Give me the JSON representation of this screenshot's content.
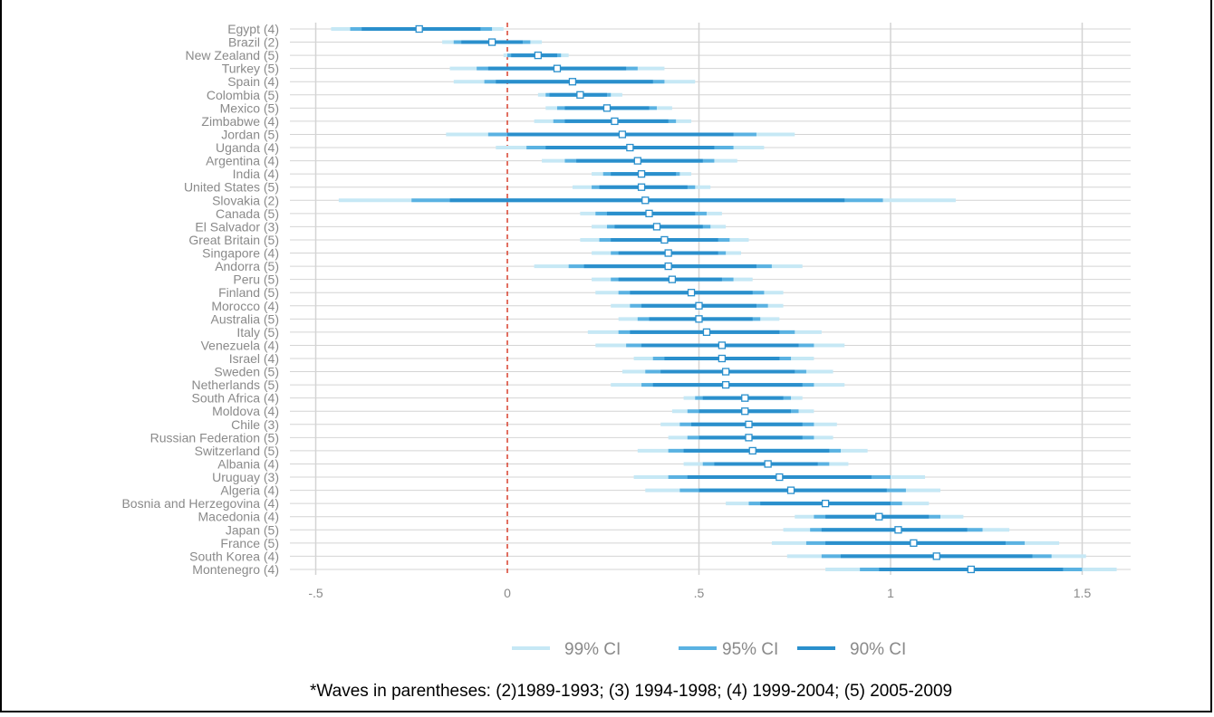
{
  "chart_data": {
    "type": "coefficient-plot",
    "x_ticks": [
      {
        "value": -0.5,
        "label": "-.5"
      },
      {
        "value": 0,
        "label": "0"
      },
      {
        "value": 0.5,
        "label": ".5"
      },
      {
        "value": 1,
        "label": "1"
      },
      {
        "value": 1.5,
        "label": "1.5"
      }
    ],
    "xlim": [
      -0.55,
      1.63
    ],
    "reference_line": 0,
    "grid": true,
    "legend_position": "bottom",
    "legend": [
      "99% CI",
      "95% CI",
      "90% CI"
    ],
    "colors": {
      "ci99": "#c6e8f5",
      "ci95": "#5ab2e2",
      "ci90": "#2a8fcc",
      "reference": "#d9412f",
      "grid": "#d4d4d4",
      "point_fill": "#ffffff",
      "point_stroke": "#2a8fcc"
    },
    "footnote": "*Waves in parentheses: (2)1989-1993; (3) 1994-1998; (4) 1999-2004; (5) 2005-2009",
    "rows": [
      {
        "label": "Egypt (4)",
        "estimate": -0.23,
        "ci99": [
          -0.46,
          -0.01
        ],
        "ci95": [
          -0.41,
          -0.04
        ],
        "ci90": [
          -0.38,
          -0.07
        ]
      },
      {
        "label": "Brazil (2)",
        "estimate": -0.04,
        "ci99": [
          -0.17,
          0.09
        ],
        "ci95": [
          -0.14,
          0.06
        ],
        "ci90": [
          -0.12,
          0.04
        ]
      },
      {
        "label": "New Zealand (5)",
        "estimate": 0.08,
        "ci99": [
          -0.01,
          0.16
        ],
        "ci95": [
          0.0,
          0.14
        ],
        "ci90": [
          0.01,
          0.13
        ]
      },
      {
        "label": "Turkey (5)",
        "estimate": 0.13,
        "ci99": [
          -0.15,
          0.41
        ],
        "ci95": [
          -0.08,
          0.34
        ],
        "ci90": [
          -0.05,
          0.31
        ]
      },
      {
        "label": "Spain (4)",
        "estimate": 0.17,
        "ci99": [
          -0.14,
          0.49
        ],
        "ci95": [
          -0.06,
          0.41
        ],
        "ci90": [
          -0.03,
          0.38
        ]
      },
      {
        "label": "Colombia (5)",
        "estimate": 0.19,
        "ci99": [
          0.08,
          0.3
        ],
        "ci95": [
          0.1,
          0.27
        ],
        "ci90": [
          0.11,
          0.26
        ]
      },
      {
        "label": "Mexico (5)",
        "estimate": 0.26,
        "ci99": [
          0.1,
          0.43
        ],
        "ci95": [
          0.13,
          0.39
        ],
        "ci90": [
          0.15,
          0.37
        ]
      },
      {
        "label": "Zimbabwe (4)",
        "estimate": 0.28,
        "ci99": [
          0.07,
          0.48
        ],
        "ci95": [
          0.12,
          0.44
        ],
        "ci90": [
          0.15,
          0.42
        ]
      },
      {
        "label": "Jordan (5)",
        "estimate": 0.3,
        "ci99": [
          -0.16,
          0.75
        ],
        "ci95": [
          -0.05,
          0.65
        ],
        "ci90": [
          0.0,
          0.59
        ]
      },
      {
        "label": "Uganda (4)",
        "estimate": 0.32,
        "ci99": [
          -0.03,
          0.67
        ],
        "ci95": [
          0.05,
          0.59
        ],
        "ci90": [
          0.1,
          0.54
        ]
      },
      {
        "label": "Argentina (4)",
        "estimate": 0.34,
        "ci99": [
          0.09,
          0.6
        ],
        "ci95": [
          0.15,
          0.54
        ],
        "ci90": [
          0.18,
          0.51
        ]
      },
      {
        "label": "India (4)",
        "estimate": 0.35,
        "ci99": [
          0.22,
          0.48
        ],
        "ci95": [
          0.25,
          0.45
        ],
        "ci90": [
          0.27,
          0.44
        ]
      },
      {
        "label": "United States (5)",
        "estimate": 0.35,
        "ci99": [
          0.17,
          0.53
        ],
        "ci95": [
          0.22,
          0.49
        ],
        "ci90": [
          0.24,
          0.47
        ]
      },
      {
        "label": "Slovakia (2)",
        "estimate": 0.36,
        "ci99": [
          -0.44,
          1.17
        ],
        "ci95": [
          -0.25,
          0.98
        ],
        "ci90": [
          -0.15,
          0.88
        ]
      },
      {
        "label": "Canada (5)",
        "estimate": 0.37,
        "ci99": [
          0.19,
          0.56
        ],
        "ci95": [
          0.23,
          0.52
        ],
        "ci90": [
          0.26,
          0.49
        ]
      },
      {
        "label": "El Salvador (3)",
        "estimate": 0.39,
        "ci99": [
          0.22,
          0.57
        ],
        "ci95": [
          0.26,
          0.53
        ],
        "ci90": [
          0.28,
          0.51
        ]
      },
      {
        "label": "Great Britain (5)",
        "estimate": 0.41,
        "ci99": [
          0.19,
          0.63
        ],
        "ci95": [
          0.24,
          0.58
        ],
        "ci90": [
          0.27,
          0.55
        ]
      },
      {
        "label": "Singapore (4)",
        "estimate": 0.42,
        "ci99": [
          0.22,
          0.61
        ],
        "ci95": [
          0.27,
          0.57
        ],
        "ci90": [
          0.29,
          0.55
        ]
      },
      {
        "label": "Andorra (5)",
        "estimate": 0.42,
        "ci99": [
          0.07,
          0.77
        ],
        "ci95": [
          0.16,
          0.69
        ],
        "ci90": [
          0.2,
          0.65
        ]
      },
      {
        "label": "Peru (5)",
        "estimate": 0.43,
        "ci99": [
          0.22,
          0.64
        ],
        "ci95": [
          0.27,
          0.59
        ],
        "ci90": [
          0.29,
          0.56
        ]
      },
      {
        "label": "Finland (5)",
        "estimate": 0.48,
        "ci99": [
          0.23,
          0.72
        ],
        "ci95": [
          0.29,
          0.67
        ],
        "ci90": [
          0.32,
          0.64
        ]
      },
      {
        "label": "Morocco (4)",
        "estimate": 0.5,
        "ci99": [
          0.27,
          0.72
        ],
        "ci95": [
          0.32,
          0.68
        ],
        "ci90": [
          0.35,
          0.65
        ]
      },
      {
        "label": "Australia (5)",
        "estimate": 0.5,
        "ci99": [
          0.29,
          0.71
        ],
        "ci95": [
          0.34,
          0.66
        ],
        "ci90": [
          0.37,
          0.64
        ]
      },
      {
        "label": "Italy (5)",
        "estimate": 0.52,
        "ci99": [
          0.21,
          0.82
        ],
        "ci95": [
          0.29,
          0.75
        ],
        "ci90": [
          0.32,
          0.71
        ]
      },
      {
        "label": "Venezuela (4)",
        "estimate": 0.56,
        "ci99": [
          0.23,
          0.88
        ],
        "ci95": [
          0.31,
          0.8
        ],
        "ci90": [
          0.35,
          0.76
        ]
      },
      {
        "label": "Israel (4)",
        "estimate": 0.56,
        "ci99": [
          0.33,
          0.8
        ],
        "ci95": [
          0.38,
          0.74
        ],
        "ci90": [
          0.41,
          0.71
        ]
      },
      {
        "label": "Sweden (5)",
        "estimate": 0.57,
        "ci99": [
          0.3,
          0.85
        ],
        "ci95": [
          0.36,
          0.78
        ],
        "ci90": [
          0.4,
          0.75
        ]
      },
      {
        "label": "Netherlands (5)",
        "estimate": 0.57,
        "ci99": [
          0.27,
          0.88
        ],
        "ci95": [
          0.35,
          0.8
        ],
        "ci90": [
          0.38,
          0.77
        ]
      },
      {
        "label": "South Africa (4)",
        "estimate": 0.62,
        "ci99": [
          0.46,
          0.77
        ],
        "ci95": [
          0.49,
          0.74
        ],
        "ci90": [
          0.51,
          0.72
        ]
      },
      {
        "label": "Moldova (4)",
        "estimate": 0.62,
        "ci99": [
          0.43,
          0.8
        ],
        "ci95": [
          0.47,
          0.76
        ],
        "ci90": [
          0.5,
          0.74
        ]
      },
      {
        "label": "Chile (3)",
        "estimate": 0.63,
        "ci99": [
          0.4,
          0.86
        ],
        "ci95": [
          0.45,
          0.8
        ],
        "ci90": [
          0.48,
          0.77
        ]
      },
      {
        "label": "Russian Federation (5)",
        "estimate": 0.63,
        "ci99": [
          0.42,
          0.85
        ],
        "ci95": [
          0.47,
          0.8
        ],
        "ci90": [
          0.5,
          0.77
        ]
      },
      {
        "label": "Switzerland (5)",
        "estimate": 0.64,
        "ci99": [
          0.34,
          0.94
        ],
        "ci95": [
          0.42,
          0.87
        ],
        "ci90": [
          0.46,
          0.84
        ]
      },
      {
        "label": "Albania (4)",
        "estimate": 0.68,
        "ci99": [
          0.46,
          0.89
        ],
        "ci95": [
          0.51,
          0.84
        ],
        "ci90": [
          0.54,
          0.81
        ]
      },
      {
        "label": "Uruguay (3)",
        "estimate": 0.71,
        "ci99": [
          0.33,
          1.09
        ],
        "ci95": [
          0.42,
          1.0
        ],
        "ci90": [
          0.47,
          0.95
        ]
      },
      {
        "label": "Algeria (4)",
        "estimate": 0.74,
        "ci99": [
          0.36,
          1.13
        ],
        "ci95": [
          0.45,
          1.04
        ],
        "ci90": [
          0.5,
          0.99
        ]
      },
      {
        "label": "Bosnia and Herzegovina (4)",
        "estimate": 0.83,
        "ci99": [
          0.57,
          1.1
        ],
        "ci95": [
          0.63,
          1.03
        ],
        "ci90": [
          0.66,
          1.0
        ]
      },
      {
        "label": "Macedonia (4)",
        "estimate": 0.97,
        "ci99": [
          0.75,
          1.19
        ],
        "ci95": [
          0.8,
          1.13
        ],
        "ci90": [
          0.83,
          1.1
        ]
      },
      {
        "label": "Japan (5)",
        "estimate": 1.02,
        "ci99": [
          0.72,
          1.31
        ],
        "ci95": [
          0.79,
          1.24
        ],
        "ci90": [
          0.82,
          1.2
        ]
      },
      {
        "label": "France (5)",
        "estimate": 1.06,
        "ci99": [
          0.69,
          1.44
        ],
        "ci95": [
          0.78,
          1.35
        ],
        "ci90": [
          0.83,
          1.3
        ]
      },
      {
        "label": "South Korea (4)",
        "estimate": 1.12,
        "ci99": [
          0.73,
          1.51
        ],
        "ci95": [
          0.82,
          1.42
        ],
        "ci90": [
          0.87,
          1.37
        ]
      },
      {
        "label": "Montenegro (4)",
        "estimate": 1.21,
        "ci99": [
          0.83,
          1.59
        ],
        "ci95": [
          0.92,
          1.5
        ],
        "ci90": [
          0.97,
          1.45
        ]
      }
    ]
  }
}
